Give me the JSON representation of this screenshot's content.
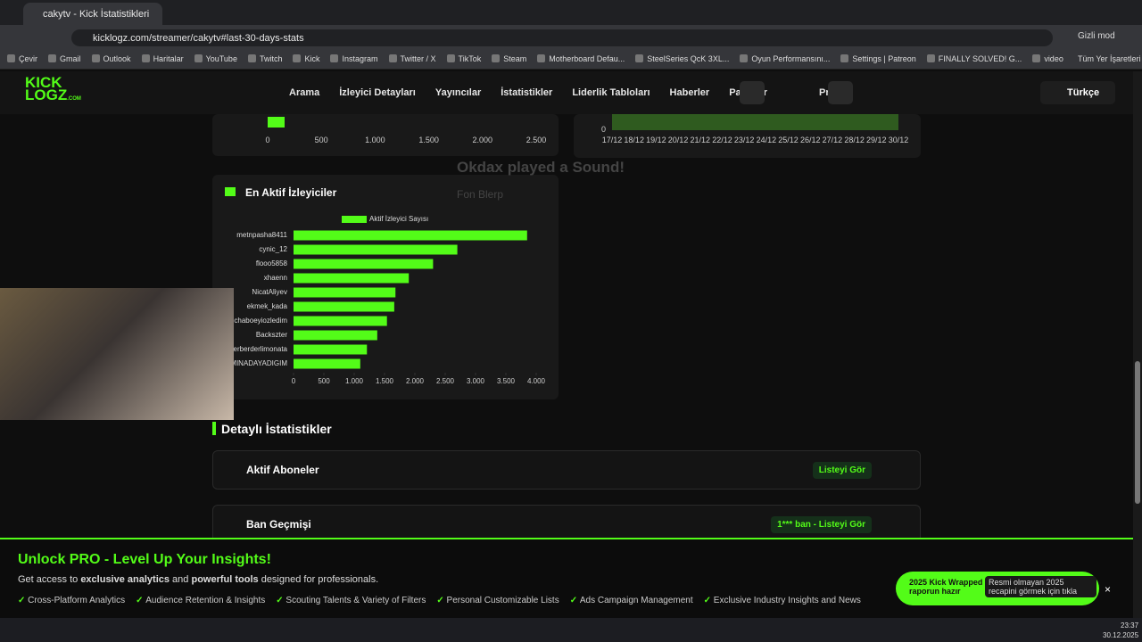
{
  "browser": {
    "tab_title": "cakytv - Kick İstatistikleri",
    "url": "kicklogz.com/streamer/cakytv#last-30-days-stats",
    "profile": "Gizli mod",
    "bookmarks": [
      "Çevir",
      "Gmail",
      "Outlook",
      "Haritalar",
      "YouTube",
      "Twitch",
      "Kick",
      "Instagram",
      "Twitter / X",
      "TikTok",
      "Steam",
      "Motherboard Defau...",
      "SteelSeries QcK 3XL...",
      "Oyun Performansını...",
      "Settings | Patreon",
      "FINALLY SOLVED! G...",
      "video"
    ],
    "all_bookmarks": "Tüm Yer İşaretleri"
  },
  "nav": {
    "logo_top": "KICK",
    "logo_bottom": "LOGZ",
    "logo_suffix": ".COM",
    "items": [
      "Arama",
      "İzleyici Detayları",
      "Yayıncılar",
      "İstatistikler",
      "Liderlik Tabloları",
      "Haberler",
      "Paketler",
      "Pricing"
    ],
    "language": "Türkçe"
  },
  "top_left_chart": {
    "xlim": [
      0,
      2500
    ],
    "xticks": [
      0,
      500,
      {
        "value": 1000,
        "label": "1.000"
      },
      {
        "value": 1500,
        "label": "1.500"
      },
      {
        "value": 2000,
        "label": "2.000"
      },
      {
        "value": 2500,
        "label": "2.500"
      }
    ]
  },
  "top_right_chart": {
    "ytick": 0,
    "categories": [
      "17/12",
      "18/12",
      "19/12",
      "20/12",
      "21/12",
      "22/12",
      "23/12",
      "24/12",
      "25/12",
      "26/12",
      "27/12",
      "28/12",
      "29/12",
      "30/12"
    ]
  },
  "notification": {
    "title": "Okdax played a Sound!",
    "subtitle": "Fon Blerp"
  },
  "chart_data": {
    "type": "hbar",
    "title": "En Aktif İzleyiciler",
    "color": "#53fc18",
    "categories": [
      "metnpasha8411",
      "cynic_12",
      "flooo5858",
      "xhaenn",
      "NicatAliyev",
      "ekmek_kada",
      "chaboeyiozledim",
      "Backszter",
      "erberderlimonata",
      "MINADAYADIGIM"
    ],
    "series": [
      {
        "name": "Aktif İzleyici Sayısı",
        "color": "#53fc18",
        "values": [
          3850,
          2700,
          2300,
          1900,
          1680,
          1660,
          1540,
          1380,
          1210,
          1100
        ]
      }
    ],
    "xlim": [
      0,
      4000
    ],
    "xticks": [
      0,
      500,
      {
        "value": 1000,
        "label": "1.000"
      },
      {
        "value": 1500,
        "label": "1.500"
      },
      {
        "value": 2000,
        "label": "2.000"
      },
      {
        "value": 2500,
        "label": "2.500"
      },
      {
        "value": 3000,
        "label": "3.000"
      },
      {
        "value": 3500,
        "label": "3.500"
      },
      {
        "value": 4000,
        "label": "4.000"
      }
    ]
  },
  "details": {
    "heading": "Detaylı İstatistikler",
    "sections": [
      {
        "title": "Aktif Aboneler",
        "action": "Listeyi Gör"
      },
      {
        "title": "Ban Geçmişi",
        "action": "1*** ban - Listeyi Gör"
      }
    ]
  },
  "promo": {
    "title": "Unlock PRO - Level Up Your Insights!",
    "text": [
      "Get access to ",
      "exclusive analytics",
      " and ",
      "powerful tools",
      " designed for professionals."
    ],
    "features": [
      "Cross-Platform Analytics",
      "Audience Retention & Insights",
      "Scouting Talents & Variety of Filters",
      "Personal Customizable Lists",
      "Ads Campaign Management",
      "Exclusive Industry Insights and News"
    ]
  },
  "toast": {
    "title": "2025 Kick Wrapped raporun hazır",
    "text": "Resmi olmayan 2025 recapini görmek için tıkla"
  },
  "taskbar": {
    "time": "23:37",
    "date": "30.12.2025"
  }
}
